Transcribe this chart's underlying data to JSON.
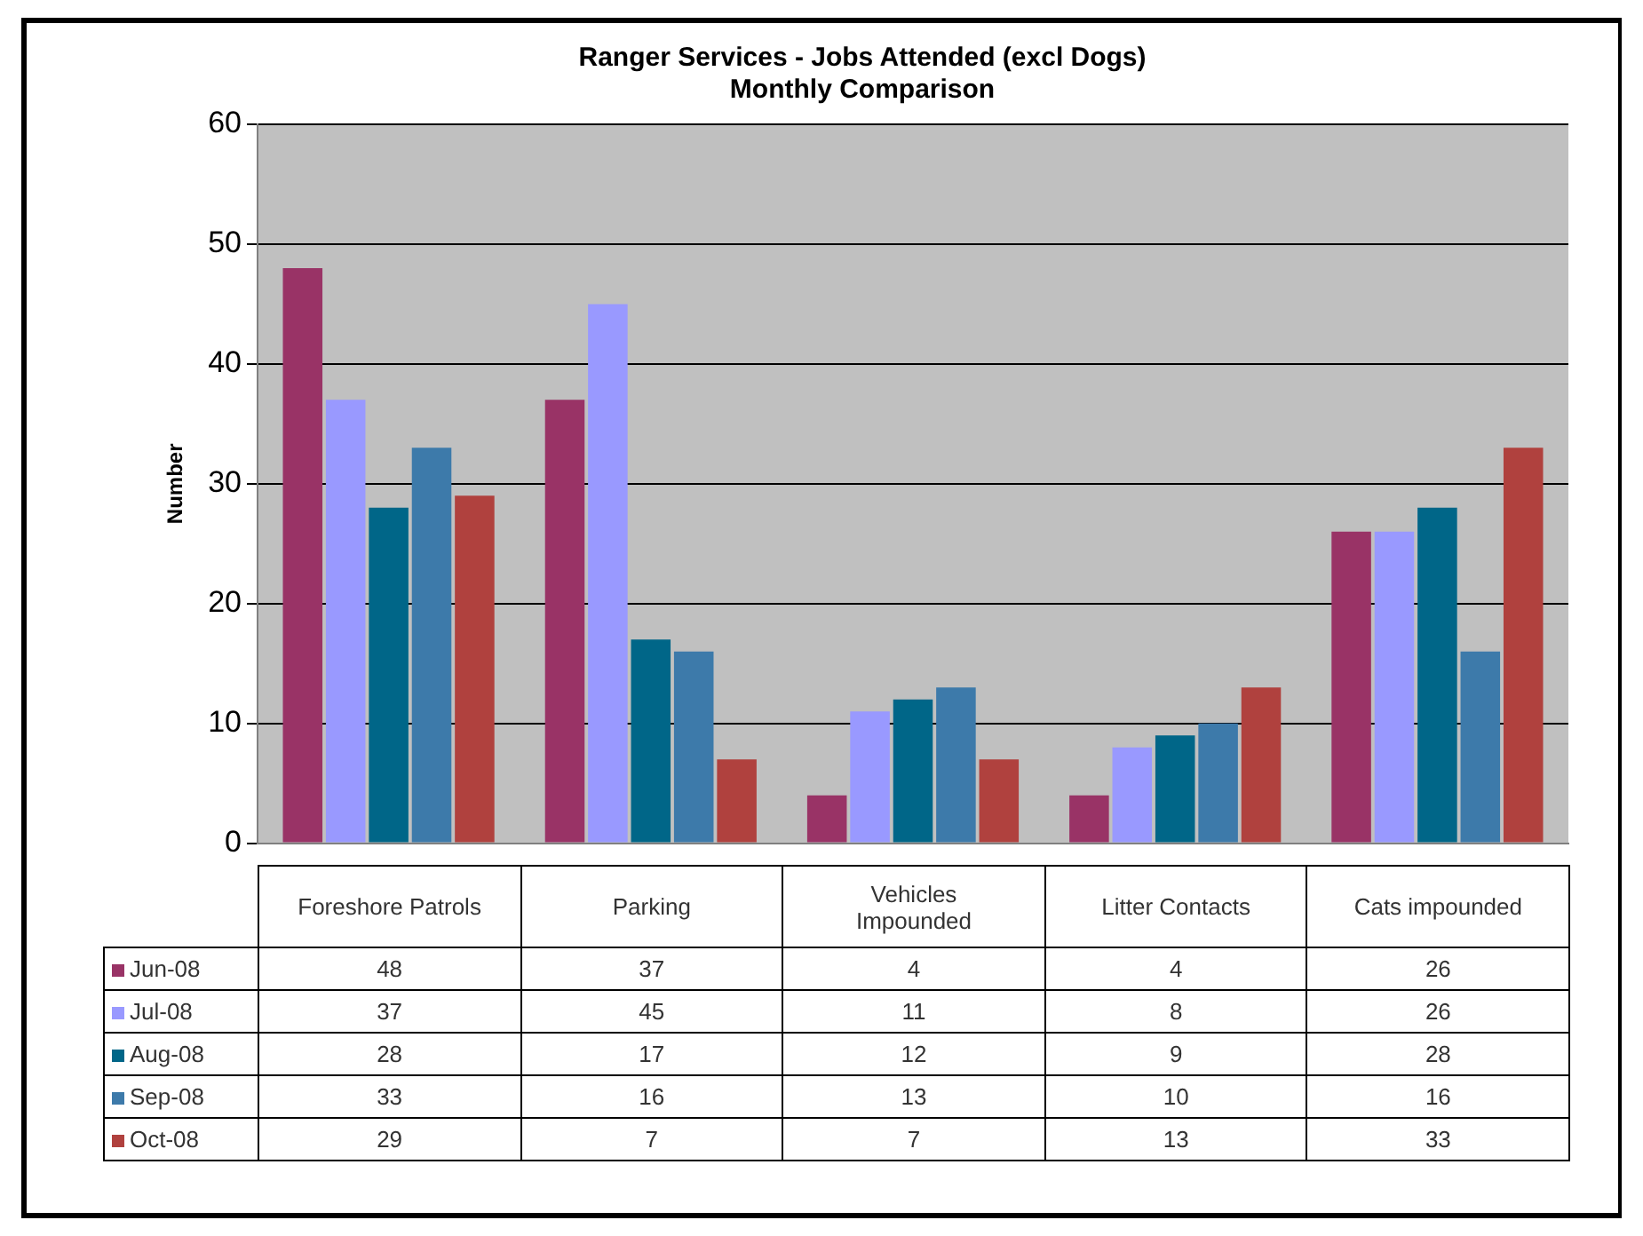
{
  "chart_data": {
    "type": "bar",
    "title": "Ranger Services - Jobs Attended (excl Dogs)",
    "subtitle": "Monthly Comparison",
    "ylabel": "Number",
    "categories": [
      "Foreshore Patrols",
      "Parking",
      "Vehicles Impounded",
      "Litter Contacts",
      "Cats impounded"
    ],
    "series": [
      {
        "name": "Jun-08",
        "color": "#993366",
        "values": [
          48,
          37,
          4,
          4,
          26
        ]
      },
      {
        "name": "Jul-08",
        "color": "#9999ff",
        "values": [
          37,
          45,
          11,
          8,
          26
        ]
      },
      {
        "name": "Aug-08",
        "color": "#006688",
        "values": [
          28,
          17,
          12,
          9,
          28
        ]
      },
      {
        "name": "Sep-08",
        "color": "#3d7aaa",
        "values": [
          33,
          16,
          13,
          10,
          16
        ]
      },
      {
        "name": "Oct-08",
        "color": "#b0413e",
        "values": [
          29,
          7,
          7,
          13,
          33
        ]
      }
    ],
    "ylim": [
      0,
      60
    ],
    "yticks": [
      0,
      10,
      20,
      30,
      40,
      50,
      60
    ],
    "grid": "y",
    "legend": "bottom",
    "data_labels": true
  }
}
